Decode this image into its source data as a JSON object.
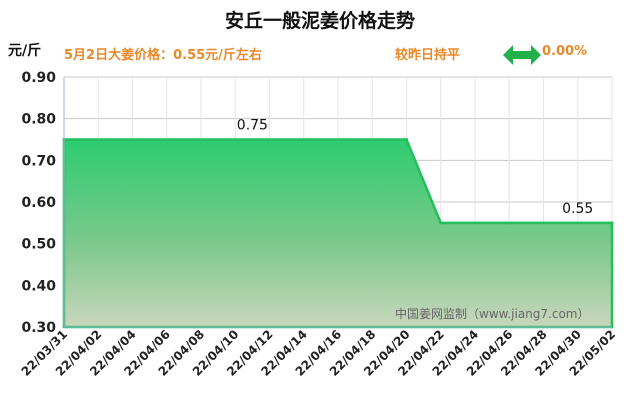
{
  "header": {
    "title": "安丘一般泥姜价格走势",
    "unit": "元/斤",
    "price_note": "5月2日大姜价格：0.55元/斤左右",
    "compare_text": "较昨日持平",
    "change": "0.00%",
    "arrow_icon": "left-right-arrow-icon",
    "accent_color": "#e8892a",
    "arrow_color": "#22b04b"
  },
  "watermark": "中国姜网监制（www.jiang7.com）",
  "chart_data": {
    "type": "area",
    "title": "安丘一般泥姜价格走势",
    "ylabel": "元/斤",
    "ylim": [
      0.3,
      0.9
    ],
    "yticks": [
      "0.30",
      "0.40",
      "0.50",
      "0.60",
      "0.70",
      "0.80",
      "0.90"
    ],
    "xlim": [
      "2022-03-31",
      "2022-05-02"
    ],
    "xticks": [
      "22/03/31",
      "22/04/02",
      "22/04/04",
      "22/04/06",
      "22/04/08",
      "22/04/10",
      "22/04/12",
      "22/04/14",
      "22/04/16",
      "22/04/18",
      "22/04/20",
      "22/04/22",
      "22/04/24",
      "22/04/26",
      "22/04/28",
      "22/04/30",
      "22/05/02"
    ],
    "grid": true,
    "series": [
      {
        "points": [
          {
            "x": "2022-03-31",
            "y": 0.75
          },
          {
            "x": "2022-04-20",
            "y": 0.75
          },
          {
            "x": "2022-04-22",
            "y": 0.55
          },
          {
            "x": "2022-05-02",
            "y": 0.55
          }
        ],
        "color": "#22c05a"
      }
    ],
    "annotations": [
      {
        "x": "2022-04-11",
        "y": 0.75,
        "text": "0.75"
      },
      {
        "x": "2022-04-30",
        "y": 0.55,
        "text": "0.55"
      }
    ]
  }
}
